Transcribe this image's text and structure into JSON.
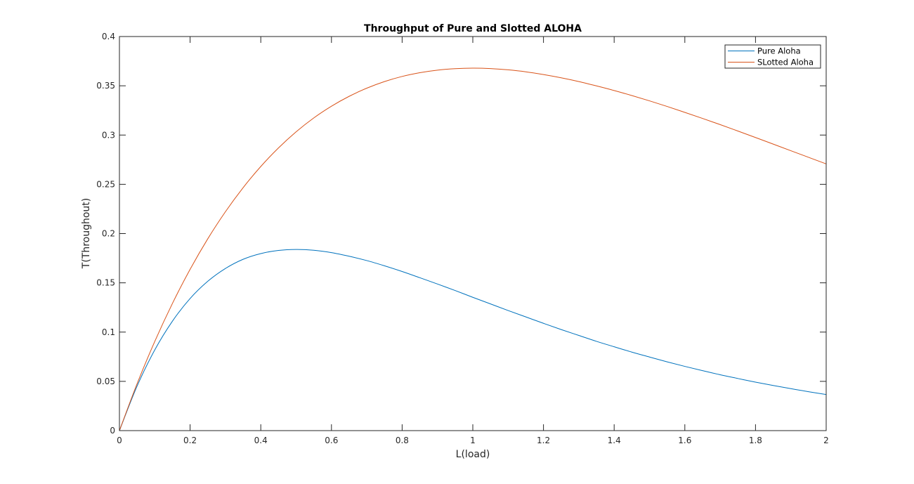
{
  "chart_data": {
    "type": "line",
    "title": "Throughput of Pure and Slotted ALOHA",
    "xlabel": "L(load)",
    "ylabel": "T(Throughout)",
    "xlim": [
      0,
      2
    ],
    "ylim": [
      0,
      0.4
    ],
    "grid": false,
    "legend_position": "top-right",
    "x_ticks": [
      "0",
      "0.2",
      "0.4",
      "0.6",
      "0.8",
      "1",
      "1.2",
      "1.4",
      "1.6",
      "1.8",
      "2"
    ],
    "y_ticks": [
      "0",
      "0.05",
      "0.1",
      "0.15",
      "0.2",
      "0.25",
      "0.3",
      "0.35",
      "0.4"
    ],
    "x": [
      0,
      0.05,
      0.1,
      0.15,
      0.2,
      0.25,
      0.3,
      0.35,
      0.4,
      0.45,
      0.5,
      0.55,
      0.6,
      0.65,
      0.7,
      0.75,
      0.8,
      0.85,
      0.9,
      0.95,
      1,
      1.05,
      1.1,
      1.15,
      1.2,
      1.25,
      1.3,
      1.35,
      1.4,
      1.45,
      1.5,
      1.55,
      1.6,
      1.65,
      1.7,
      1.75,
      1.8,
      1.85,
      1.9,
      1.95,
      2
    ],
    "series": [
      {
        "name": "Pure Aloha",
        "color": "#0072BD",
        "values": [
          0,
          0.0452,
          0.0819,
          0.1111,
          0.1341,
          0.1516,
          0.1646,
          0.1739,
          0.1797,
          0.1829,
          0.1839,
          0.1831,
          0.1807,
          0.177,
          0.1726,
          0.1673,
          0.1615,
          0.1552,
          0.1488,
          0.1422,
          0.1353,
          0.1286,
          0.1219,
          0.1154,
          0.1089,
          0.1026,
          0.0966,
          0.0906,
          0.0851,
          0.0797,
          0.0747,
          0.0698,
          0.0652,
          0.0609,
          0.0567,
          0.0529,
          0.0492,
          0.0458,
          0.0426,
          0.0395,
          0.0366
        ]
      },
      {
        "name": "SLotted Aloha",
        "color": "#D95319",
        "values": [
          0,
          0.0476,
          0.0905,
          0.1291,
          0.1637,
          0.1947,
          0.2222,
          0.2466,
          0.2681,
          0.2869,
          0.3033,
          0.3174,
          0.3293,
          0.3393,
          0.3476,
          0.3543,
          0.3595,
          0.3633,
          0.3659,
          0.3674,
          0.3679,
          0.3675,
          0.3662,
          0.3642,
          0.3614,
          0.3581,
          0.3543,
          0.3499,
          0.3452,
          0.3401,
          0.3347,
          0.329,
          0.323,
          0.3169,
          0.3106,
          0.3041,
          0.2975,
          0.2908,
          0.2841,
          0.2774,
          0.2707
        ]
      }
    ]
  }
}
